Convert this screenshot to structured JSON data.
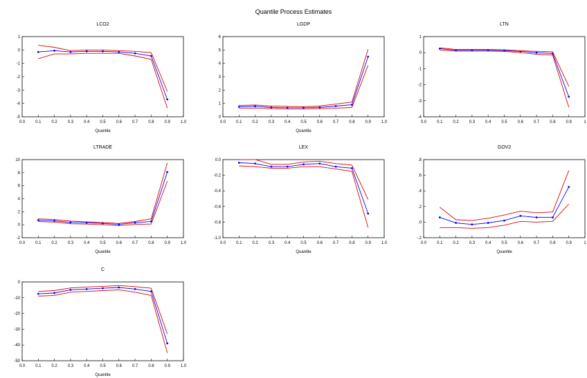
{
  "title": "Quantile Process Estimates",
  "colors": {
    "estimate": "#0000ff",
    "band": "#e00000",
    "axis": "#000000"
  },
  "chart_data": [
    {
      "type": "line",
      "title": "LCO2",
      "xlabel": "Quantile",
      "x": [
        0.1,
        0.2,
        0.3,
        0.4,
        0.5,
        0.6,
        0.7,
        0.8,
        0.9
      ],
      "xlim": [
        0.0,
        1.0
      ],
      "xticks": [
        "0.0",
        "0.1",
        "0.2",
        "0.3",
        "0.4",
        "0.5",
        "0.6",
        "0.7",
        "0.8",
        "0.9",
        "1.0"
      ],
      "ylim": [
        -5,
        1
      ],
      "yticks": [
        1,
        0,
        -1,
        -2,
        -3,
        -4,
        -5
      ],
      "ytick_labels": [
        "1",
        "0",
        "-1",
        "-2",
        "-3",
        "-4",
        "-5"
      ],
      "series": [
        {
          "role": "estimate",
          "values": [
            -0.15,
            -0.05,
            -0.15,
            -0.1,
            -0.1,
            -0.15,
            -0.25,
            -0.45,
            -3.7
          ]
        },
        {
          "role": "upper",
          "values": [
            0.35,
            0.2,
            -0.05,
            0.0,
            0.0,
            -0.05,
            -0.1,
            -0.2,
            -3.1
          ]
        },
        {
          "role": "lower",
          "values": [
            -0.65,
            -0.3,
            -0.3,
            -0.25,
            -0.25,
            -0.25,
            -0.45,
            -0.7,
            -4.35
          ]
        }
      ]
    },
    {
      "type": "line",
      "title": "LGDP",
      "xlabel": "Quantile",
      "x": [
        0.1,
        0.2,
        0.3,
        0.4,
        0.5,
        0.6,
        0.7,
        0.8,
        0.9
      ],
      "xlim": [
        0.0,
        1.0
      ],
      "xticks": [
        "0.0",
        "0.1",
        "0.2",
        "0.3",
        "0.4",
        "0.5",
        "0.6",
        "0.7",
        "0.8",
        "0.9",
        "1.0"
      ],
      "ylim": [
        0,
        6
      ],
      "yticks": [
        6,
        5,
        4,
        3,
        2,
        1,
        0
      ],
      "ytick_labels": [
        "6",
        "5",
        "4",
        "3",
        "2",
        "1",
        "0"
      ],
      "series": [
        {
          "role": "estimate",
          "values": [
            0.75,
            0.78,
            0.7,
            0.68,
            0.68,
            0.7,
            0.8,
            0.9,
            4.5
          ]
        },
        {
          "role": "upper",
          "values": [
            0.85,
            0.88,
            0.8,
            0.78,
            0.76,
            0.8,
            0.95,
            1.1,
            5.05
          ]
        },
        {
          "role": "lower",
          "values": [
            0.65,
            0.65,
            0.6,
            0.58,
            0.58,
            0.6,
            0.65,
            0.7,
            3.85
          ]
        }
      ]
    },
    {
      "type": "line",
      "title": "LTN",
      "xlabel": "",
      "x": [
        0.1,
        0.2,
        0.3,
        0.4,
        0.5,
        0.6,
        0.7,
        0.8,
        0.9
      ],
      "xlim": [
        0.0,
        1.0
      ],
      "xticks": [
        "0.0",
        "0.1",
        "0.2",
        "0.3",
        "0.4",
        "0.5",
        "0.6",
        "0.7",
        "0.8",
        "0.9",
        "1"
      ],
      "ylim": [
        -4,
        1
      ],
      "yticks": [
        1,
        0,
        -1,
        -2,
        -3,
        -4
      ],
      "ytick_labels": [
        "1",
        "0",
        "-1",
        "-2",
        "-3",
        "-4"
      ],
      "series": [
        {
          "role": "estimate",
          "values": [
            0.25,
            0.15,
            0.15,
            0.15,
            0.12,
            0.08,
            0.0,
            -0.05,
            -2.75
          ]
        },
        {
          "role": "upper",
          "values": [
            0.3,
            0.2,
            0.2,
            0.2,
            0.18,
            0.12,
            0.08,
            0.05,
            -2.1
          ]
        },
        {
          "role": "lower",
          "values": [
            0.15,
            0.1,
            0.1,
            0.1,
            0.08,
            0.0,
            -0.1,
            -0.15,
            -3.4
          ]
        }
      ]
    },
    {
      "type": "line",
      "title": "LTRADE",
      "xlabel": "Quantile",
      "x": [
        0.1,
        0.2,
        0.3,
        0.4,
        0.5,
        0.6,
        0.7,
        0.8,
        0.9
      ],
      "xlim": [
        0.0,
        1.0
      ],
      "xticks": [
        "0.0",
        "0.1",
        "0.2",
        "0.3",
        "0.4",
        "0.5",
        "0.6",
        "0.7",
        "0.8",
        "0.9",
        "1.0"
      ],
      "ylim": [
        -2,
        10
      ],
      "yticks": [
        10,
        8,
        6,
        4,
        2,
        0,
        -2
      ],
      "ytick_labels": [
        "10",
        "8",
        "6",
        "4",
        "2",
        "0",
        "-2"
      ],
      "series": [
        {
          "role": "estimate",
          "values": [
            0.7,
            0.6,
            0.35,
            0.3,
            0.2,
            0.05,
            0.3,
            0.5,
            8.1
          ]
        },
        {
          "role": "upper",
          "values": [
            0.9,
            0.8,
            0.55,
            0.45,
            0.35,
            0.2,
            0.5,
            0.9,
            9.5
          ]
        },
        {
          "role": "lower",
          "values": [
            0.5,
            0.4,
            0.15,
            0.1,
            0.0,
            -0.15,
            0.05,
            0.1,
            6.7
          ]
        }
      ]
    },
    {
      "type": "line",
      "title": "LEX",
      "xlabel": "Quantile",
      "x": [
        0.1,
        0.2,
        0.3,
        0.4,
        0.5,
        0.6,
        0.7,
        0.8,
        0.9
      ],
      "xlim": [
        0.0,
        1.0
      ],
      "xticks": [
        "0.0",
        "0.1",
        "0.2",
        "0.3",
        "0.4",
        "0.5",
        "0.6",
        "0.7",
        "0.8",
        "0.9",
        "1.0"
      ],
      "ylim": [
        -1.0,
        0.0
      ],
      "yticks": [
        0.0,
        -0.2,
        -0.4,
        -0.6,
        -0.8,
        -1.0
      ],
      "ytick_labels": [
        "0.0",
        "-0.2",
        "-0.4",
        "-0.6",
        "-0.8",
        "-1.0"
      ],
      "series": [
        {
          "role": "estimate",
          "values": [
            -0.04,
            -0.05,
            -0.09,
            -0.09,
            -0.06,
            -0.05,
            -0.09,
            -0.11,
            -0.69
          ]
        },
        {
          "role": "upper",
          "values": [
            0.0,
            0.0,
            -0.06,
            -0.06,
            -0.03,
            -0.02,
            -0.05,
            -0.07,
            -0.51
          ]
        },
        {
          "role": "lower",
          "values": [
            -0.08,
            -0.09,
            -0.11,
            -0.11,
            -0.09,
            -0.09,
            -0.12,
            -0.15,
            -0.87
          ]
        }
      ]
    },
    {
      "type": "line",
      "title": "GOV2",
      "xlabel": "Quantile",
      "x": [
        0.1,
        0.2,
        0.3,
        0.4,
        0.5,
        0.6,
        0.7,
        0.8,
        0.9
      ],
      "xlim": [
        0.0,
        1.0
      ],
      "xticks": [
        "0.0",
        "0.1",
        "0.2",
        "0.3",
        "0.4",
        "0.5",
        "0.6",
        "0.7",
        "0.8",
        "0.9",
        "1"
      ],
      "ylim": [
        -0.2,
        0.8
      ],
      "yticks": [
        0.8,
        0.6,
        0.4,
        0.2,
        0.0,
        -0.2
      ],
      "ytick_labels": [
        ".8",
        ".6",
        ".4",
        ".2",
        ".0",
        "-.2"
      ],
      "series": [
        {
          "role": "estimate",
          "values": [
            0.06,
            -0.01,
            -0.03,
            -0.01,
            0.02,
            0.08,
            0.06,
            0.06,
            0.45
          ]
        },
        {
          "role": "upper",
          "values": [
            0.19,
            0.03,
            0.02,
            0.05,
            0.09,
            0.14,
            0.12,
            0.13,
            0.66
          ]
        },
        {
          "role": "lower",
          "values": [
            -0.07,
            -0.07,
            -0.08,
            -0.07,
            -0.04,
            0.01,
            0.0,
            0.01,
            0.23
          ]
        }
      ]
    },
    {
      "type": "line",
      "title": "C",
      "xlabel": "Quantile",
      "x": [
        0.1,
        0.2,
        0.3,
        0.4,
        0.5,
        0.6,
        0.7,
        0.8,
        0.9
      ],
      "xlim": [
        0.0,
        1.0
      ],
      "xticks": [
        "0.0",
        "0.1",
        "0.2",
        "0.3",
        "0.4",
        "0.5",
        "0.6",
        "0.7",
        "0.8",
        "0.9",
        "1.0"
      ],
      "ylim": [
        -50,
        0
      ],
      "yticks": [
        0,
        -10,
        -20,
        -30,
        -40,
        -50
      ],
      "ytick_labels": [
        "0",
        "-10",
        "-20",
        "-30",
        "-40",
        "-50"
      ],
      "series": [
        {
          "role": "estimate",
          "values": [
            -7.5,
            -7,
            -5,
            -4.5,
            -4,
            -3.5,
            -4.5,
            -6,
            -39
          ]
        },
        {
          "role": "upper",
          "values": [
            -6,
            -5.5,
            -3.8,
            -3.2,
            -2.8,
            -2.3,
            -3,
            -4,
            -33
          ]
        },
        {
          "role": "lower",
          "values": [
            -9,
            -8.5,
            -6.5,
            -6,
            -5.5,
            -5,
            -6.5,
            -8.5,
            -45
          ]
        }
      ]
    }
  ]
}
